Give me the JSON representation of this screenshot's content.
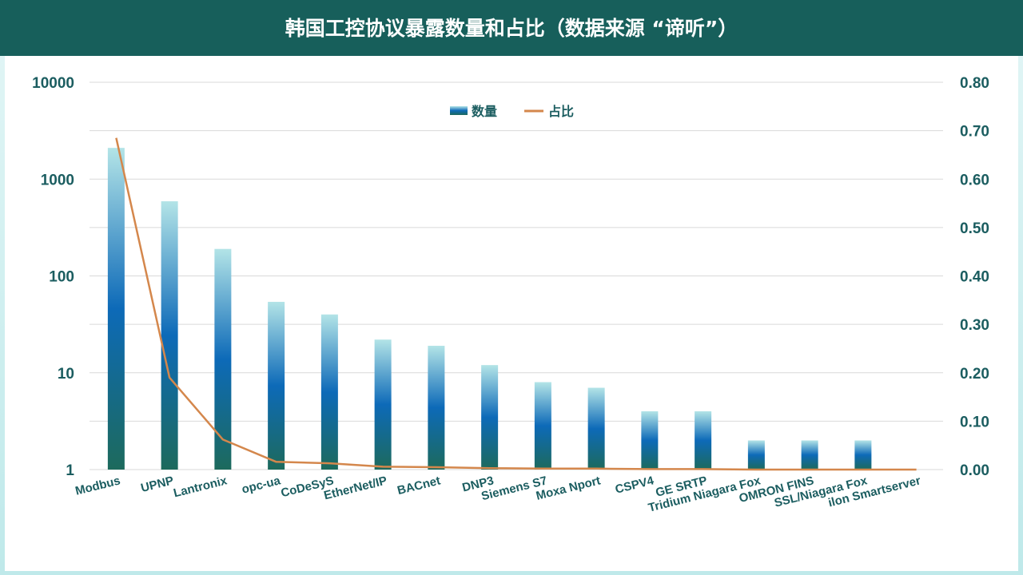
{
  "title": "韩国工控协议暴露数量和占比（数据来源 “谛听”）",
  "chart_data": {
    "type": "bar",
    "categories": [
      "Modbus",
      "UPNP",
      "Lantronix",
      "opc-ua",
      "CoDeSyS",
      "EtherNet/IP",
      "BACnet",
      "DNP3",
      "Siemens S7",
      "Moxa Nport",
      "CSPV4",
      "GE SRTP",
      "Tridium Niagara Fox",
      "OMRON FINS",
      "SSL/Niagara Fox",
      "ilon Smartserver"
    ],
    "series": [
      {
        "name": "数量",
        "type": "bar",
        "axis": "left",
        "values": [
          2100,
          590,
          190,
          54,
          40,
          22,
          19,
          12,
          8,
          7,
          4,
          4,
          2,
          2,
          2,
          1
        ]
      },
      {
        "name": "占比",
        "type": "line",
        "axis": "right",
        "values": [
          0.685,
          0.19,
          0.062,
          0.016,
          0.013,
          0.006,
          0.005,
          0.003,
          0.002,
          0.002,
          0.001,
          0.001,
          0.0,
          0.0,
          0.0,
          0.0
        ]
      }
    ],
    "y_left": {
      "scale": "log",
      "ylim": [
        1,
        10000
      ],
      "ticks": [
        "1",
        "10",
        "100",
        "1000",
        "10000"
      ]
    },
    "y_right": {
      "scale": "linear",
      "ylim": [
        0,
        0.8
      ],
      "ticks": [
        "0.00",
        "0.10",
        "0.20",
        "0.30",
        "0.40",
        "0.50",
        "0.60",
        "0.70",
        "0.80"
      ]
    },
    "legend": {
      "position": "top-center",
      "items": [
        "数量",
        "占比"
      ]
    },
    "grid": true,
    "colors": {
      "bar_top": "#a9e0e4",
      "bar_mid": "#0d6ab8",
      "bar_bottom": "#1b6a60",
      "line": "#d4874c",
      "text": "#1b5d60",
      "grid": "#d9d9d9"
    }
  }
}
